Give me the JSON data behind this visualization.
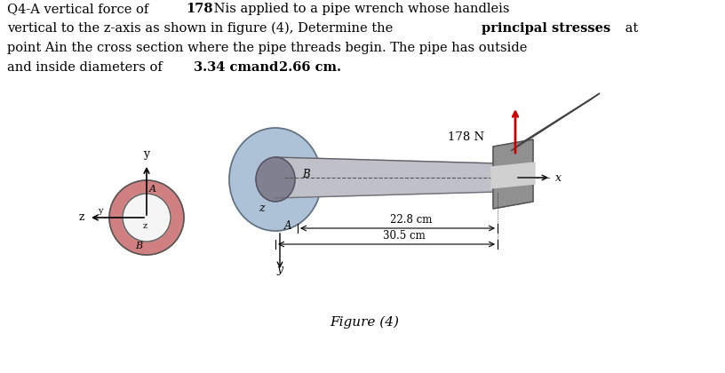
{
  "title_text": "Q4-A vertical force of 178 Nis applied to a pipe wrench whose handleis\nvertical to the z-axis as shown in figure (4), Determine the principal stresses at\npoint Ain the cross section where the pipe threads begin. The pipe has outside\nand inside diameters of 3.34 cmand 2.66 cm.",
  "bold_words": [
    "178",
    "principal stresses",
    "3.34 cmand",
    "2.66 cm."
  ],
  "fig_label": "Figure (4)",
  "dim1_label": "30.5 cm",
  "dim2_label": "22.8 cm",
  "force_label": "178 N",
  "point_A_label": "A",
  "point_B_label": "B",
  "axis_x_label": "x",
  "axis_y_label": "y",
  "axis_z_label": "z",
  "bg_color": "#ffffff",
  "pipe_color_main": "#b0b0b0",
  "pipe_color_dark": "#888888",
  "pipe_flange_color": "#a0b8d0",
  "pipe_ring_outer": "#d08080",
  "pipe_ring_inner": "#f5f5f5",
  "force_arrow_color": "#cc0000",
  "wrench_color": "#909090"
}
